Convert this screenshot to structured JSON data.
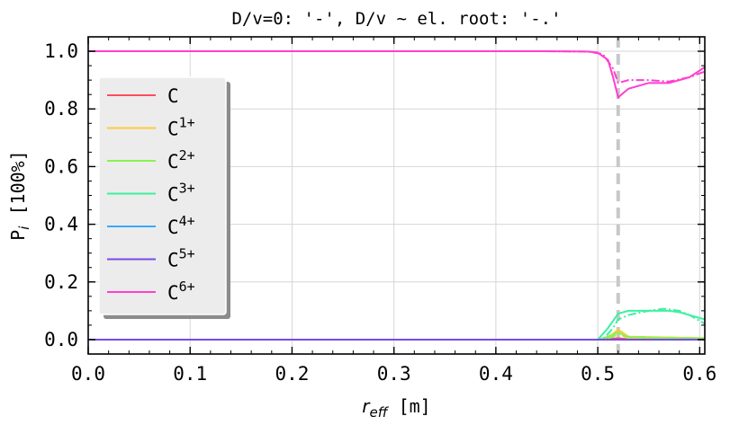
{
  "chart_data": {
    "type": "line",
    "title": "D/v=0: '-', D/v ~ el. root: '-.'",
    "xlabel": "r_eff [m]",
    "ylabel": "P_i [100%]",
    "xlim": [
      0.0,
      0.605
    ],
    "ylim": [
      -0.05,
      1.05
    ],
    "xticks": [
      "0.0",
      "0.1",
      "0.2",
      "0.3",
      "0.4",
      "0.5",
      "0.6"
    ],
    "yticks": [
      "0.0",
      "0.2",
      "0.4",
      "0.6",
      "0.8",
      "1.0"
    ],
    "grid": true,
    "legend_position": "center-left",
    "vline": {
      "x": 0.52,
      "color": "#c8c8c8",
      "style": "dashed"
    },
    "series": [
      {
        "name": "C",
        "base": "C",
        "sup": "",
        "color": "#ff4d5a",
        "solid": [
          [
            0,
            0
          ],
          [
            0.5,
            0
          ],
          [
            0.51,
            0.002
          ],
          [
            0.52,
            0.005
          ],
          [
            0.53,
            0.001
          ],
          [
            0.605,
            0
          ]
        ],
        "dashdot": [
          [
            0,
            0
          ],
          [
            0.605,
            0
          ]
        ]
      },
      {
        "name": "C1+",
        "base": "C",
        "sup": "1+",
        "color": "#ffc83c",
        "solid": [
          [
            0,
            0
          ],
          [
            0.505,
            0
          ],
          [
            0.515,
            0.02
          ],
          [
            0.52,
            0.035
          ],
          [
            0.53,
            0.01
          ],
          [
            0.605,
            0.005
          ]
        ],
        "dashdot": [
          [
            0,
            0
          ],
          [
            0.505,
            0
          ],
          [
            0.515,
            0.01
          ],
          [
            0.52,
            0.02
          ],
          [
            0.53,
            0.005
          ],
          [
            0.605,
            0.002
          ]
        ]
      },
      {
        "name": "C2+",
        "base": "C",
        "sup": "2+",
        "color": "#8cf24e",
        "solid": [
          [
            0,
            0
          ],
          [
            0.5,
            0
          ],
          [
            0.51,
            0.01
          ],
          [
            0.52,
            0.025
          ],
          [
            0.53,
            0.008
          ],
          [
            0.55,
            0.006
          ],
          [
            0.605,
            0.004
          ]
        ],
        "dashdot": [
          [
            0,
            0
          ],
          [
            0.505,
            0
          ],
          [
            0.515,
            0.01
          ],
          [
            0.52,
            0.02
          ],
          [
            0.53,
            0.01
          ],
          [
            0.55,
            0.008
          ],
          [
            0.605,
            0.005
          ]
        ]
      },
      {
        "name": "C3+",
        "base": "C",
        "sup": "3+",
        "color": "#3ef0a0",
        "solid": [
          [
            0,
            0
          ],
          [
            0.5,
            0
          ],
          [
            0.51,
            0.04
          ],
          [
            0.52,
            0.09
          ],
          [
            0.53,
            0.1
          ],
          [
            0.55,
            0.1
          ],
          [
            0.56,
            0.1
          ],
          [
            0.57,
            0.1
          ],
          [
            0.58,
            0.095
          ],
          [
            0.59,
            0.085
          ],
          [
            0.605,
            0.07
          ]
        ],
        "dashdot": [
          [
            0,
            0
          ],
          [
            0.505,
            0
          ],
          [
            0.515,
            0.04
          ],
          [
            0.52,
            0.07
          ],
          [
            0.53,
            0.085
          ],
          [
            0.55,
            0.1
          ],
          [
            0.565,
            0.107
          ],
          [
            0.58,
            0.1
          ],
          [
            0.59,
            0.085
          ],
          [
            0.605,
            0.055
          ]
        ]
      },
      {
        "name": "C4+",
        "base": "C",
        "sup": "4+",
        "color": "#3aa8ff",
        "solid": [
          [
            0,
            0
          ],
          [
            0.605,
            0
          ]
        ],
        "dashdot": [
          [
            0,
            0
          ],
          [
            0.605,
            0
          ]
        ]
      },
      {
        "name": "C5+",
        "base": "C",
        "sup": "5+",
        "color": "#7a4ae6",
        "solid": [
          [
            0,
            0
          ],
          [
            0.605,
            0
          ]
        ],
        "dashdot": [
          [
            0,
            0
          ],
          [
            0.605,
            0
          ]
        ]
      },
      {
        "name": "C6+",
        "base": "C",
        "sup": "6+",
        "color": "#ff3fcf",
        "solid": [
          [
            0,
            1.0
          ],
          [
            0.45,
            1.0
          ],
          [
            0.49,
            0.999
          ],
          [
            0.5,
            0.995
          ],
          [
            0.51,
            0.97
          ],
          [
            0.515,
            0.91
          ],
          [
            0.52,
            0.84
          ],
          [
            0.53,
            0.87
          ],
          [
            0.55,
            0.89
          ],
          [
            0.57,
            0.89
          ],
          [
            0.59,
            0.91
          ],
          [
            0.605,
            0.945
          ]
        ],
        "dashdot": [
          [
            0,
            1.0
          ],
          [
            0.45,
            1.0
          ],
          [
            0.49,
            0.999
          ],
          [
            0.505,
            0.99
          ],
          [
            0.515,
            0.94
          ],
          [
            0.52,
            0.89
          ],
          [
            0.53,
            0.9
          ],
          [
            0.55,
            0.9
          ],
          [
            0.57,
            0.895
          ],
          [
            0.59,
            0.91
          ],
          [
            0.605,
            0.93
          ]
        ]
      }
    ]
  }
}
